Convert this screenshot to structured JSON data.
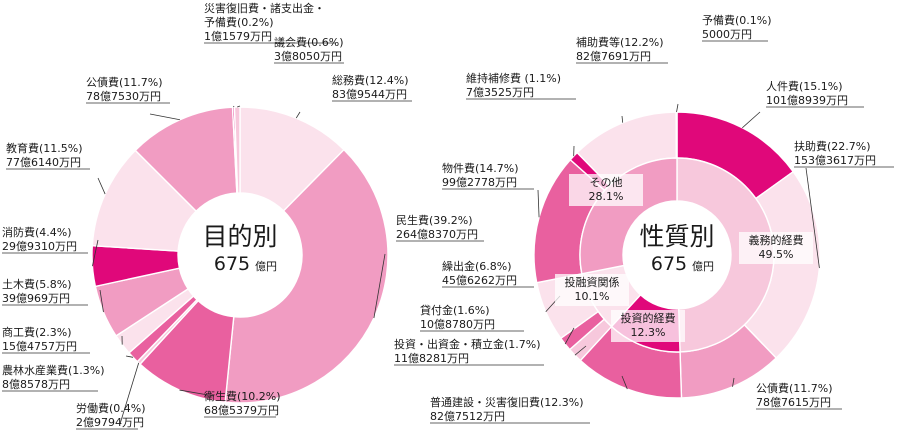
{
  "colors": {
    "magenta": "#e0087a",
    "mid_pink": "#e9609f",
    "pink": "#f19cc2",
    "light_pink": "#f7c8dc",
    "pale_pink": "#fbe2ec",
    "very_pale": "#fdeef4"
  },
  "chart_data": [
    {
      "type": "pie",
      "variant": "donut",
      "center_title": "目的別",
      "center_total": "675",
      "center_unit": "億円",
      "slices": [
        {
          "name": "総務費",
          "percent": 12.4,
          "label1": "総務費(12.4%)",
          "label2": "83億9544万円",
          "color": "#fbe2ec"
        },
        {
          "name": "民生費",
          "percent": 39.2,
          "label1": "民生費(39.2%)",
          "label2": "264億8370万円",
          "color": "#f19cc2"
        },
        {
          "name": "衛生費",
          "percent": 10.2,
          "label1": "衛生費(10.2%)",
          "label2": "68億5379万円",
          "color": "#e9609f"
        },
        {
          "name": "労働費",
          "percent": 0.4,
          "label1": "労働費(0.4%)",
          "label2": "2億9794万円",
          "color": "#f7c8dc"
        },
        {
          "name": "農林水産業費",
          "percent": 1.3,
          "label1": "農林水産業費(1.3%)",
          "label2": "8億8578万円",
          "color": "#e9609f"
        },
        {
          "name": "商工費",
          "percent": 2.3,
          "label1": "商工費(2.3%)",
          "label2": "15億4757万円",
          "color": "#fbe2ec"
        },
        {
          "name": "土木費",
          "percent": 5.8,
          "label1": "土木費(5.8%)",
          "label2": "39億969万円",
          "color": "#f19cc2"
        },
        {
          "name": "消防費",
          "percent": 4.4,
          "label1": "消防費(4.4%)",
          "label2": "29億9310万円",
          "color": "#e0087a"
        },
        {
          "name": "教育費",
          "percent": 11.5,
          "label1": "教育費(11.5%)",
          "label2": "77億6140万円",
          "color": "#fbe2ec"
        },
        {
          "name": "公債費",
          "percent": 11.7,
          "label1": "公債費(11.7%)",
          "label2": "78億7530万円",
          "color": "#f19cc2"
        },
        {
          "name": "災害復旧費・諸支出金・予備費",
          "percent": 0.2,
          "label0": "災害復旧費・諸支出金・",
          "label1": "予備費(0.2%)",
          "label2": "1億1579万円",
          "color": "#e0087a"
        },
        {
          "name": "議会費",
          "percent": 0.6,
          "label1": "議会費(0.6%)",
          "label2": "3億8050万円",
          "color": "#f7c8dc"
        }
      ]
    },
    {
      "type": "pie",
      "variant": "nested-donut",
      "center_title": "性質別",
      "center_total": "675",
      "center_unit": "億円",
      "outer": [
        {
          "name": "人件費",
          "percent": 15.1,
          "label1": "人件費(15.1%)",
          "label2": "101億8939万円",
          "color": "#e0087a"
        },
        {
          "name": "扶助費",
          "percent": 22.7,
          "label1": "扶助費(22.7%)",
          "label2": "153億3617万円",
          "color": "#fbe2ec"
        },
        {
          "name": "公債費",
          "percent": 11.7,
          "label1": "公債費(11.7%)",
          "label2": "78億7615万円",
          "color": "#f19cc2"
        },
        {
          "name": "普通建設・災害復旧費",
          "percent": 12.3,
          "label1": "普通建設・災害復旧費(12.3%)",
          "label2": "82億7512万円",
          "color": "#e9609f"
        },
        {
          "name": "投資・出資金・積立金",
          "percent": 1.7,
          "label1": "投資・出資金・積立金(1.7%)",
          "label2": "11億8281万円",
          "color": "#f7c8dc"
        },
        {
          "name": "貸付金",
          "percent": 1.6,
          "label1": "貸付金(1.6%)",
          "label2": "10億8780万円",
          "color": "#e9609f"
        },
        {
          "name": "繰出金",
          "percent": 6.8,
          "label1": "繰出金(6.8%)",
          "label2": "45億6262万円",
          "color": "#fbe2ec"
        },
        {
          "name": "物件費",
          "percent": 14.7,
          "label1": "物件費(14.7%)",
          "label2": "99億2778万円",
          "color": "#e9609f"
        },
        {
          "name": "維持補修費",
          "percent": 1.1,
          "label1": "維持補修費 (1.1%)",
          "label2": "7億3525万円",
          "color": "#e0087a"
        },
        {
          "name": "補助費等",
          "percent": 12.2,
          "label1": "補助費等(12.2%)",
          "label2": "82億7691万円",
          "color": "#fbe2ec"
        },
        {
          "name": "予備費",
          "percent": 0.1,
          "label1": "予備費(0.1%)",
          "label2": "5000万円",
          "color": "#f7c8dc"
        }
      ],
      "inner": [
        {
          "name": "義務的経費",
          "percent": 49.5,
          "label1": "義務的経費",
          "label2": "49.5%",
          "color": "#f7c8dc"
        },
        {
          "name": "投資的経費",
          "percent": 12.3,
          "label1": "投資的経費",
          "label2": "12.3%",
          "color": "#e0087a"
        },
        {
          "name": "投融資関係",
          "percent": 10.1,
          "label1": "投融資関係",
          "label2": "10.1%",
          "color": "#fbe2ec"
        },
        {
          "name": "その他",
          "percent": 28.1,
          "label1": "その他",
          "label2": "28.1%",
          "color": "#f19cc2"
        }
      ]
    }
  ]
}
